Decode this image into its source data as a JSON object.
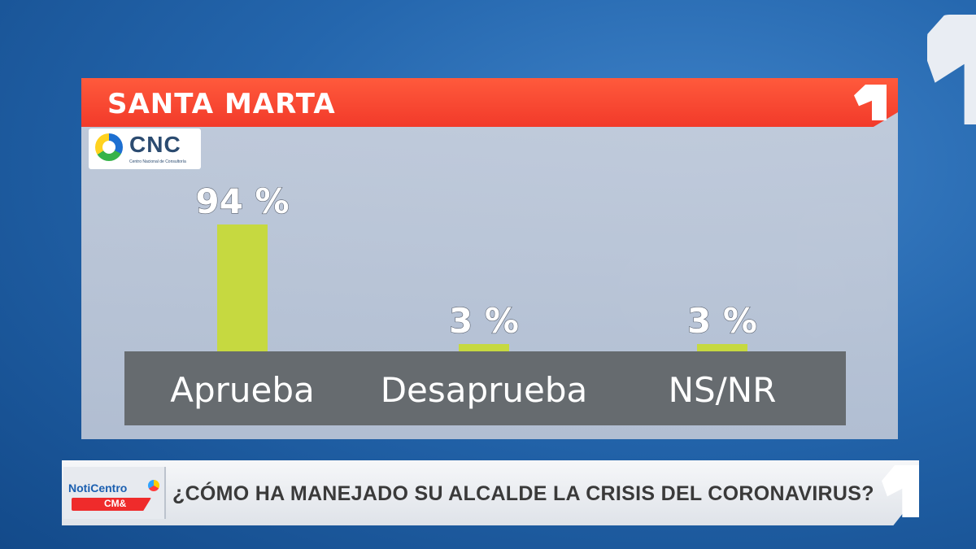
{
  "title": "SANTA MARTA",
  "source_logo": {
    "name": "CNC",
    "subtitle": "Centro Nacional de Consultoría"
  },
  "chart_data": {
    "type": "bar",
    "categories": [
      "Aprueba",
      "Desaprueba",
      "NS/NR"
    ],
    "values": [
      94,
      3,
      3
    ],
    "value_labels": [
      "94 %",
      "3 %",
      "3 %"
    ],
    "ylim": [
      0,
      100
    ],
    "bar_color": "#c6d940",
    "label_band_color": "#666b6f"
  },
  "bottom_bar": {
    "logo_text": "NotiCentro",
    "logo_badge": "CM&",
    "question": "¿CÓMO HA MANEJADO SU ALCALDE LA CRISIS DEL CORONAVIRUS?"
  }
}
